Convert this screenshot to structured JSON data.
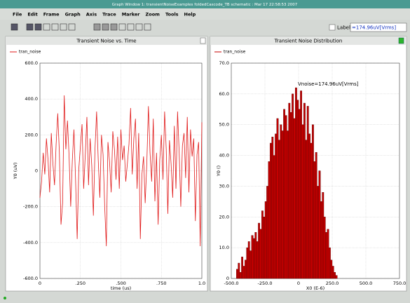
{
  "window": {
    "title": "Graph Window 1: transientNoiseExamples foldedCascode_TB schematic : Mar 17 22:58:53 2007",
    "menu": [
      "File",
      "Edit",
      "Frame",
      "Graph",
      "Axis",
      "Trace",
      "Marker",
      "Zoom",
      "Tools",
      "Help"
    ],
    "label_checkbox": "Label",
    "label_field": "=174.96uV[Vrms]"
  },
  "chart_data": [
    {
      "type": "line",
      "title": "Transient Noise vs. Time",
      "xlabel": "time (us)",
      "ylabel": "Y0 (uV)",
      "x": [
        0,
        0.01,
        0.02,
        0.03,
        0.04,
        0.05,
        0.06,
        0.07,
        0.08,
        0.09,
        0.1,
        0.11,
        0.12,
        0.13,
        0.14,
        0.15,
        0.16,
        0.17,
        0.18,
        0.19,
        0.2,
        0.21,
        0.22,
        0.23,
        0.24,
        0.25,
        0.26,
        0.27,
        0.28,
        0.29,
        0.3,
        0.31,
        0.32,
        0.33,
        0.34,
        0.35,
        0.36,
        0.37,
        0.38,
        0.39,
        0.4,
        0.41,
        0.42,
        0.43,
        0.44,
        0.45,
        0.46,
        0.47,
        0.48,
        0.49,
        0.5,
        0.51,
        0.52,
        0.53,
        0.54,
        0.55,
        0.56,
        0.57,
        0.58,
        0.59,
        0.6,
        0.61,
        0.62,
        0.63,
        0.64,
        0.65,
        0.66,
        0.67,
        0.68,
        0.69,
        0.7,
        0.71,
        0.72,
        0.73,
        0.74,
        0.75,
        0.76,
        0.77,
        0.78,
        0.79,
        0.8,
        0.81,
        0.82,
        0.83,
        0.84,
        0.85,
        0.86,
        0.87,
        0.88,
        0.89,
        0.9,
        0.91,
        0.92,
        0.93,
        0.94,
        0.95,
        0.96,
        0.97,
        0.98,
        0.99,
        1.0
      ],
      "series": [
        {
          "name": "tran_noise",
          "color": "#e01818",
          "values": [
            -150,
            -60,
            100,
            -20,
            180,
            60,
            -120,
            210,
            40,
            -80,
            150,
            320,
            100,
            -300,
            -180,
            420,
            120,
            280,
            80,
            -200,
            60,
            230,
            -50,
            -380,
            10,
            140,
            260,
            -100,
            90,
            300,
            -80,
            180,
            30,
            -250,
            120,
            330,
            60,
            -150,
            200,
            90,
            -200,
            -420,
            160,
            50,
            -120,
            220,
            120,
            -50,
            190,
            -100,
            230,
            60,
            140,
            -60,
            40,
            150,
            350,
            -20,
            180,
            290,
            -100,
            210,
            -380,
            -20,
            80,
            -180,
            40,
            360,
            100,
            -60,
            290,
            -170,
            100,
            -300,
            60,
            200,
            -50,
            330,
            120,
            -240,
            170,
            40,
            -150,
            250,
            -100,
            330,
            100,
            -200,
            140,
            210,
            -40,
            300,
            -120,
            230,
            80,
            180,
            -280,
            90,
            160,
            -420,
            270
          ]
        }
      ],
      "xlim": [
        0,
        1.0
      ],
      "xticks": [
        0,
        {
          "value": 0.25,
          "label": ".250"
        },
        {
          "value": 0.5,
          "label": ".500"
        },
        {
          "value": 0.75,
          "label": ".750"
        },
        {
          "value": 1.0,
          "label": "1.0"
        }
      ],
      "ylim": [
        -600,
        600
      ],
      "yticks": [
        {
          "value": -600,
          "label": "-600.0"
        },
        {
          "value": -400,
          "label": "-400.0"
        },
        {
          "value": -200,
          "label": "-200.0"
        },
        0,
        {
          "value": 200,
          "label": "200.0"
        },
        {
          "value": 400,
          "label": "400.0"
        },
        {
          "value": 600,
          "label": "600.0"
        }
      ],
      "grid": true
    },
    {
      "type": "histogram",
      "title": "Transient Noise Distribution",
      "xlabel": "X0 (E-6)",
      "ylabel": "Y0 ()",
      "annotation": "Vnoise=174.96uV[Vrms]",
      "bins": [
        -462.5,
        -450,
        -437.5,
        -425,
        -412.5,
        -400,
        -387.5,
        -375,
        -362.5,
        -350,
        -337.5,
        -325,
        -312.5,
        -300,
        -287.5,
        -275,
        -262.5,
        -250,
        -237.5,
        -225,
        -212.5,
        -200,
        -187.5,
        -175,
        -162.5,
        -150,
        -137.5,
        -125,
        -112.5,
        -100,
        -87.5,
        -75,
        -62.5,
        -50,
        -37.5,
        -25,
        -12.5,
        0,
        12.5,
        25,
        37.5,
        50,
        62.5,
        75,
        87.5,
        100,
        112.5,
        125,
        137.5,
        150,
        162.5,
        175,
        187.5,
        200,
        212.5,
        225,
        237.5,
        250,
        262.5,
        275,
        287.5
      ],
      "series": [
        {
          "name": "tran_noise",
          "color": "#c40000",
          "values": [
            3,
            5,
            2,
            7,
            4,
            6,
            10,
            12,
            9,
            14,
            13,
            15,
            12,
            18,
            16,
            22,
            20,
            25,
            30,
            38,
            44,
            46,
            40,
            47,
            52,
            45,
            50,
            48,
            55,
            53,
            48,
            57,
            54,
            60,
            52,
            62,
            58,
            55,
            61,
            50,
            57,
            45,
            56,
            47,
            44,
            50,
            38,
            41,
            30,
            35,
            25,
            28,
            20,
            15,
            16,
            10,
            6,
            4,
            2,
            1
          ]
        }
      ],
      "xlim": [
        -500,
        750
      ],
      "xticks": [
        {
          "value": -500,
          "label": "-500.0"
        },
        {
          "value": -250,
          "label": "-250.0"
        },
        0,
        {
          "value": 250,
          "label": "250.0"
        },
        {
          "value": 500,
          "label": "500.0"
        },
        {
          "value": 750,
          "label": "750.0"
        }
      ],
      "ylim": [
        0,
        70
      ],
      "yticks": [
        0,
        {
          "value": 10,
          "label": "10.0"
        },
        {
          "value": 20,
          "label": "20.0"
        },
        {
          "value": 30,
          "label": "30.0"
        },
        {
          "value": 40,
          "label": "40.0"
        },
        {
          "value": 50,
          "label": "50.0"
        },
        {
          "value": 60,
          "label": "60.0"
        },
        {
          "value": 70,
          "label": "70.0"
        }
      ],
      "grid": true
    }
  ]
}
